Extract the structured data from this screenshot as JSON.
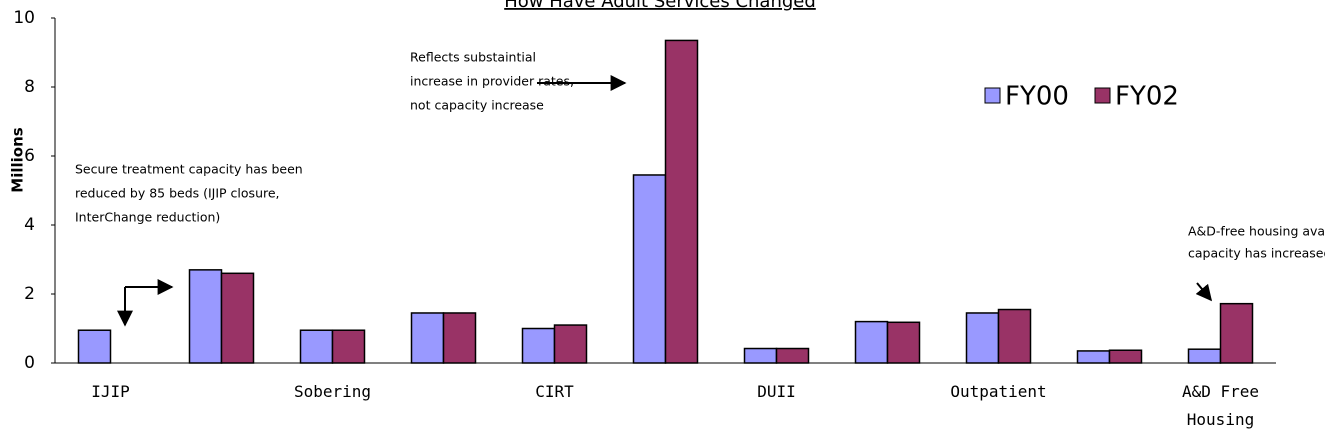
{
  "chart_data": {
    "type": "bar",
    "title": "How Have Adult Services Changed",
    "y_label": "Millions",
    "categories": [
      "IJIP",
      null,
      "Sobering",
      null,
      "CIRT",
      null,
      "DUII",
      null,
      "Outpatient",
      null,
      "A&D Free Housing"
    ],
    "series": [
      {
        "name": "FY00",
        "color": "#9999ff",
        "values": [
          0.95,
          2.7,
          0.95,
          1.45,
          1.0,
          5.45,
          0.42,
          1.2,
          1.45,
          0.35,
          0.4
        ]
      },
      {
        "name": "FY02",
        "color": "#993366",
        "values": [
          0,
          2.6,
          0.95,
          1.45,
          1.1,
          9.35,
          0.42,
          1.18,
          1.55,
          0.37,
          1.72
        ]
      }
    ],
    "ylim": [
      0,
      10
    ],
    "yticks": [
      0,
      2,
      4,
      6,
      8,
      10
    ],
    "legend": "top-right",
    "annotations": [
      {
        "lines": [
          "Secure treatment capacity has been",
          "reduced by 85 beds (IJIP closure,",
          "InterChange reduction)"
        ]
      },
      {
        "lines": [
          "Reflects substaintial",
          "increase in provider rates,",
          "not capacity increase"
        ]
      },
      {
        "lines": [
          "A&D-free housing availability/",
          "capacity has increased"
        ]
      }
    ]
  }
}
